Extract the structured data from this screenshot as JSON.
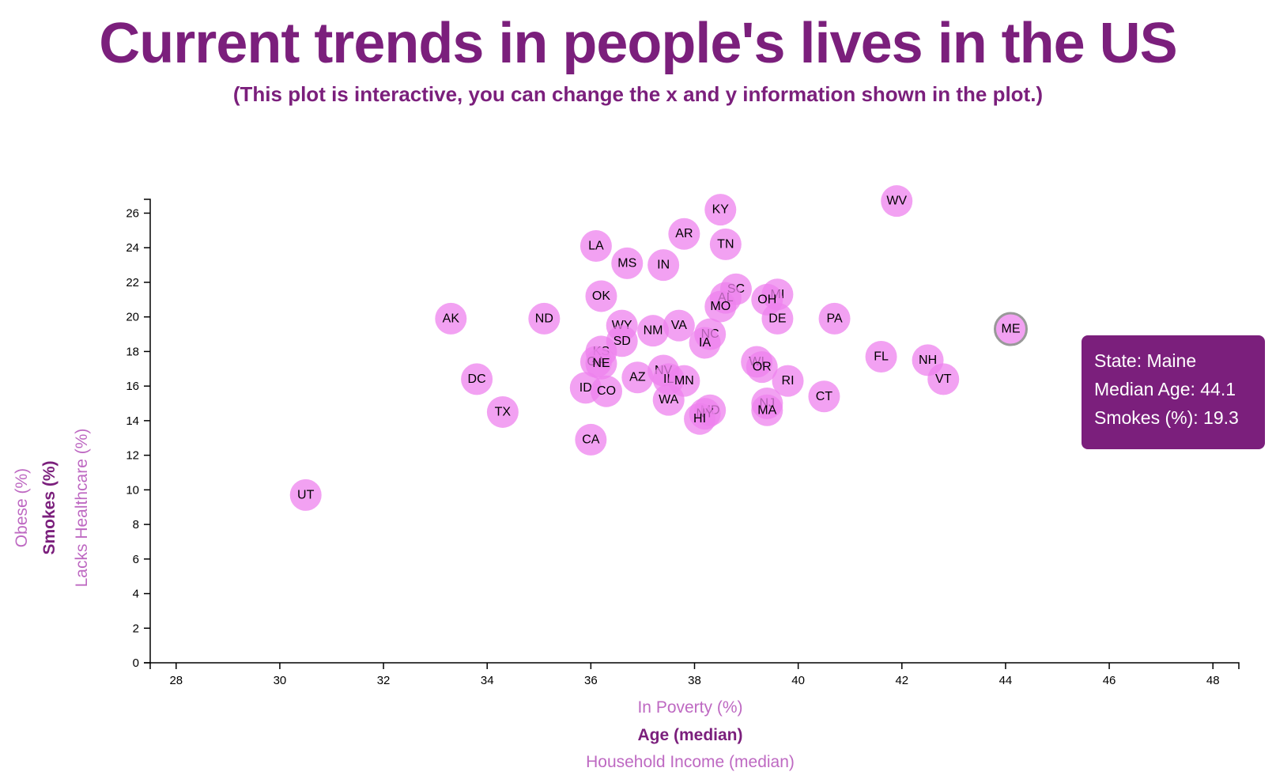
{
  "page": {
    "title": "Current trends in people's lives in the US",
    "subtitle": "(This plot is interactive, you can change the x and y information shown in the plot.)"
  },
  "x_axis_options": [
    {
      "label": "In Poverty (%)",
      "active": false
    },
    {
      "label": "Age (median)",
      "active": true
    },
    {
      "label": "Household Income (median)",
      "active": false
    }
  ],
  "y_axis_options": [
    {
      "label": "Obese (%)",
      "active": false
    },
    {
      "label": "Smokes (%)",
      "active": true
    },
    {
      "label": "Lacks Healthcare (%)",
      "active": false
    }
  ],
  "tooltip": {
    "state": "State: Maine",
    "x_line": "Median Age: 44.1",
    "y_line": "Smokes (%): 19.3"
  },
  "colors": {
    "accent": "#7b1f7c",
    "circle": "#ee82ee"
  },
  "chart_data": {
    "type": "scatter",
    "title": "Current trends in people's lives in the US",
    "xlabel": "Age (median)",
    "ylabel": "Smokes (%)",
    "xlim": [
      27.5,
      48.5
    ],
    "ylim": [
      0,
      26.8
    ],
    "x_ticks": [
      28,
      30,
      32,
      34,
      36,
      38,
      40,
      42,
      44,
      46,
      48
    ],
    "y_ticks": [
      0,
      2,
      4,
      6,
      8,
      10,
      12,
      14,
      16,
      18,
      20,
      22,
      24,
      26
    ],
    "highlighted": "ME",
    "points": [
      {
        "abbr": "WV",
        "x": 41.9,
        "y": 26.7
      },
      {
        "abbr": "KY",
        "x": 38.5,
        "y": 26.2
      },
      {
        "abbr": "AR",
        "x": 37.8,
        "y": 24.8
      },
      {
        "abbr": "TN",
        "x": 38.6,
        "y": 24.2
      },
      {
        "abbr": "LA",
        "x": 36.1,
        "y": 24.1
      },
      {
        "abbr": "MS",
        "x": 36.7,
        "y": 23.1
      },
      {
        "abbr": "IN",
        "x": 37.4,
        "y": 23.0
      },
      {
        "abbr": "SC",
        "x": 38.8,
        "y": 21.6
      },
      {
        "abbr": "MI",
        "x": 39.6,
        "y": 21.3
      },
      {
        "abbr": "AL",
        "x": 38.6,
        "y": 21.1
      },
      {
        "abbr": "OK",
        "x": 36.2,
        "y": 21.2
      },
      {
        "abbr": "OH",
        "x": 39.4,
        "y": 21.0
      },
      {
        "abbr": "MO",
        "x": 38.5,
        "y": 20.6
      },
      {
        "abbr": "AK",
        "x": 33.3,
        "y": 19.9
      },
      {
        "abbr": "ND",
        "x": 35.1,
        "y": 19.9
      },
      {
        "abbr": "PA",
        "x": 40.7,
        "y": 19.9
      },
      {
        "abbr": "DE",
        "x": 39.6,
        "y": 19.9
      },
      {
        "abbr": "ME",
        "x": 44.1,
        "y": 19.3
      },
      {
        "abbr": "WY",
        "x": 36.6,
        "y": 19.5
      },
      {
        "abbr": "VA",
        "x": 37.7,
        "y": 19.5
      },
      {
        "abbr": "NM",
        "x": 37.2,
        "y": 19.2
      },
      {
        "abbr": "NC",
        "x": 38.3,
        "y": 19.0
      },
      {
        "abbr": "SD",
        "x": 36.6,
        "y": 18.6
      },
      {
        "abbr": "IA",
        "x": 38.2,
        "y": 18.5
      },
      {
        "abbr": "KS",
        "x": 36.2,
        "y": 18.0
      },
      {
        "abbr": "FL",
        "x": 41.6,
        "y": 17.7
      },
      {
        "abbr": "NH",
        "x": 42.5,
        "y": 17.5
      },
      {
        "abbr": "WI",
        "x": 39.2,
        "y": 17.4
      },
      {
        "abbr": "GA",
        "x": 36.1,
        "y": 17.4
      },
      {
        "abbr": "NE",
        "x": 36.2,
        "y": 17.3
      },
      {
        "abbr": "OR",
        "x": 39.3,
        "y": 17.1
      },
      {
        "abbr": "NV",
        "x": 37.4,
        "y": 16.9
      },
      {
        "abbr": "IL",
        "x": 37.5,
        "y": 16.4
      },
      {
        "abbr": "AZ",
        "x": 36.9,
        "y": 16.5
      },
      {
        "abbr": "DC",
        "x": 33.8,
        "y": 16.4
      },
      {
        "abbr": "VT",
        "x": 42.8,
        "y": 16.4
      },
      {
        "abbr": "RI",
        "x": 39.8,
        "y": 16.3
      },
      {
        "abbr": "MN",
        "x": 37.8,
        "y": 16.3
      },
      {
        "abbr": "ID",
        "x": 35.9,
        "y": 15.9
      },
      {
        "abbr": "CO",
        "x": 36.3,
        "y": 15.7
      },
      {
        "abbr": "CT",
        "x": 40.5,
        "y": 15.4
      },
      {
        "abbr": "WA",
        "x": 37.5,
        "y": 15.2
      },
      {
        "abbr": "NJ",
        "x": 39.4,
        "y": 15.0
      },
      {
        "abbr": "MA",
        "x": 39.4,
        "y": 14.6
      },
      {
        "abbr": "TX",
        "x": 34.3,
        "y": 14.5
      },
      {
        "abbr": "MD",
        "x": 38.3,
        "y": 14.6
      },
      {
        "abbr": "NY",
        "x": 38.2,
        "y": 14.4
      },
      {
        "abbr": "HI",
        "x": 38.1,
        "y": 14.1
      },
      {
        "abbr": "CA",
        "x": 36.0,
        "y": 12.9
      },
      {
        "abbr": "UT",
        "x": 30.5,
        "y": 9.7
      }
    ]
  }
}
